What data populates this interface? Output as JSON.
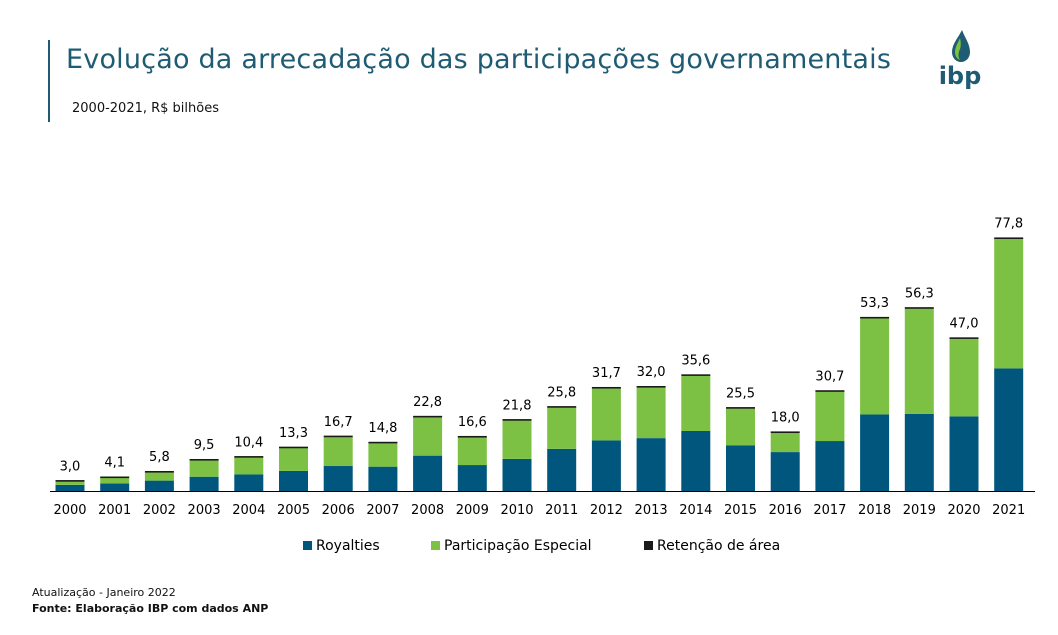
{
  "header": {
    "title": "Evolução da arrecadação das participações governamentais",
    "subtitle": "2000-2021, R$ bilhões",
    "logo_text": "ibp"
  },
  "footer": {
    "update": "Atualização - Janeiro 2022",
    "source": "Fonte: Elaboração IBP com dados ANP"
  },
  "colors": {
    "royalties": "#00567c",
    "participacao": "#7cc143",
    "retencao": "#1a1a1a",
    "title": "#1f5c73"
  },
  "chart_data": {
    "type": "bar",
    "stacked": true,
    "title": "Evolução da arrecadação das participações governamentais",
    "subtitle": "2000-2021, R$ bilhões",
    "xlabel": "",
    "ylabel": "",
    "ylim": [
      0,
      80
    ],
    "grid": false,
    "legend_position": "bottom",
    "categories": [
      "2000",
      "2001",
      "2002",
      "2003",
      "2004",
      "2005",
      "2006",
      "2007",
      "2008",
      "2009",
      "2010",
      "2011",
      "2012",
      "2013",
      "2014",
      "2015",
      "2016",
      "2017",
      "2018",
      "2019",
      "2020",
      "2021"
    ],
    "series": [
      {
        "name": "Royalties",
        "color": "#00567c",
        "values": [
          1.9,
          2.3,
          3.2,
          4.4,
          5.1,
          6.2,
          7.7,
          7.5,
          10.9,
          8.0,
          9.9,
          13.0,
          15.6,
          16.3,
          18.5,
          14.1,
          12.0,
          15.4,
          23.6,
          23.8,
          23.0,
          37.8
        ]
      },
      {
        "name": "Participação Especial",
        "color": "#7cc143",
        "values": [
          1.1,
          1.8,
          2.6,
          5.1,
          5.3,
          7.1,
          9.0,
          7.3,
          11.9,
          8.6,
          11.9,
          12.8,
          16.1,
          15.7,
          17.1,
          11.4,
          6.0,
          15.3,
          29.7,
          32.5,
          24.0,
          40.0
        ]
      },
      {
        "name": "Retenção de área",
        "color": "#1a1a1a",
        "values": [
          0.0,
          0.0,
          0.0,
          0.0,
          0.0,
          0.0,
          0.0,
          0.0,
          0.0,
          0.0,
          0.0,
          0.0,
          0.0,
          0.0,
          0.0,
          0.0,
          0.0,
          0.0,
          0.0,
          0.0,
          0.0,
          0.0
        ]
      }
    ],
    "totals": [
      "3,0",
      "4,1",
      "5,8",
      "9,5",
      "10,4",
      "13,3",
      "16,7",
      "14,8",
      "22,8",
      "16,6",
      "21,8",
      "25,8",
      "31,7",
      "32,0",
      "35,6",
      "25,5",
      "18,0",
      "30,7",
      "53,3",
      "56,3",
      "47,0",
      "77,8"
    ]
  }
}
